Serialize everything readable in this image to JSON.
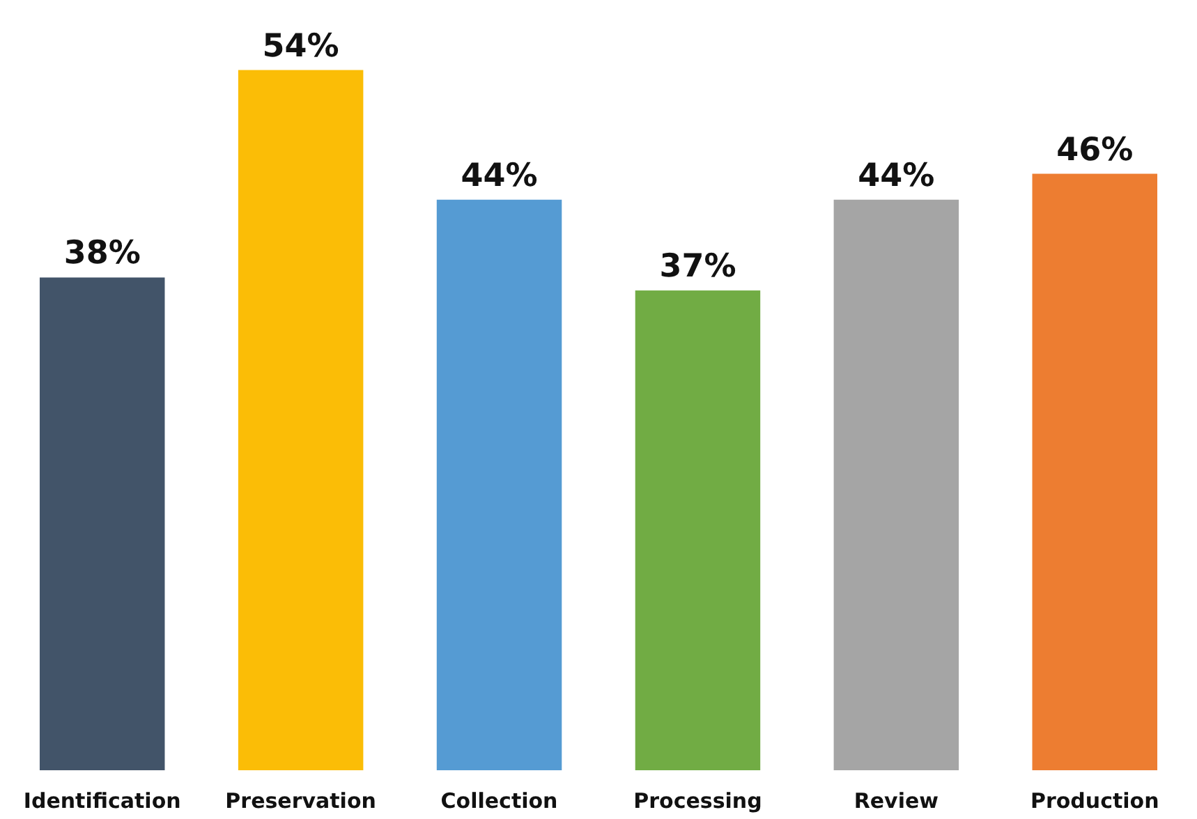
{
  "chart_data": {
    "type": "bar",
    "categories": [
      "Identification",
      "Preservation",
      "Collection",
      "Processing",
      "Review",
      "Production"
    ],
    "values": [
      38,
      54,
      44,
      37,
      44,
      46
    ],
    "colors": [
      "#425469",
      "#fbbd06",
      "#559bd3",
      "#71ac44",
      "#a5a5a5",
      "#ed7d31"
    ],
    "value_labels": [
      "38%",
      "54%",
      "44%",
      "37%",
      "44%",
      "46%"
    ]
  }
}
